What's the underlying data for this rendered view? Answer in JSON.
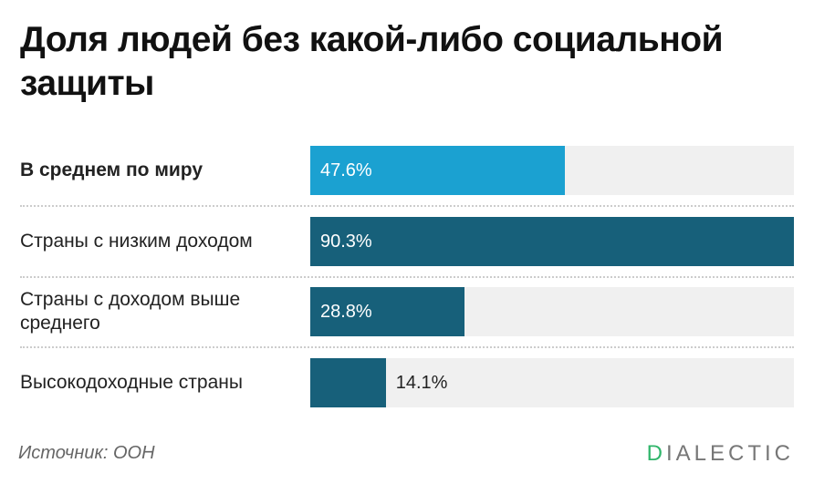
{
  "chart_data": {
    "type": "bar",
    "orientation": "horizontal",
    "title": "Доля людей без какой-либо социальной защиты",
    "categories": [
      "В среднем по миру",
      "Страны с низким доходом",
      "Страны с доходом выше среднего",
      "Высокодоходные страны"
    ],
    "values": [
      47.6,
      90.3,
      28.8,
      14.1
    ],
    "value_labels": [
      "47.6%",
      "90.3%",
      "28.8%",
      "14.1%"
    ],
    "colors": [
      "#1ba1d1",
      "#17607a",
      "#17607a",
      "#17607a"
    ],
    "xlim": [
      0,
      90.3
    ],
    "source": "Источник: ООН",
    "logo": "DIALECTIC"
  }
}
